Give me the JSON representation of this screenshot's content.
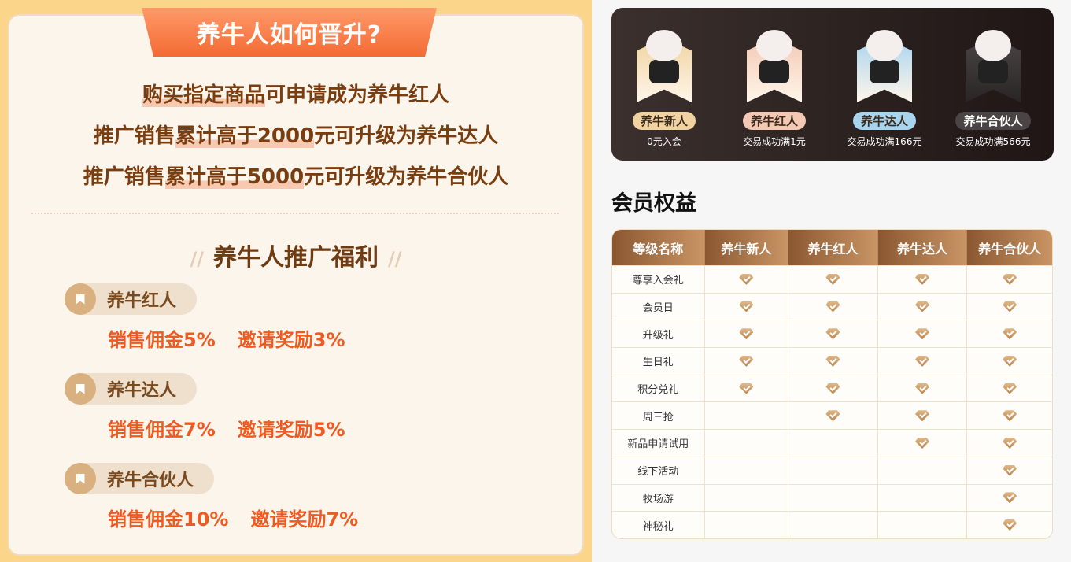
{
  "left": {
    "title": "养牛人如何晋升?",
    "rules": [
      {
        "hl": "购买指定商品",
        "rest": "可申请成为养牛红人",
        "pre": ""
      },
      {
        "pre": "推广销售",
        "hl": "累计高于2000",
        "rest": "元可升级为养牛达人"
      },
      {
        "pre": "推广销售",
        "hl": "累计高于5000",
        "rest": "元可升级为养牛合伙人"
      }
    ],
    "welfare_title": "养牛人推广福利",
    "tiers": [
      {
        "name": "养牛红人",
        "commission": "销售佣金5%",
        "invite": "邀请奖励3%"
      },
      {
        "name": "养牛达人",
        "commission": "销售佣金7%",
        "invite": "邀请奖励5%"
      },
      {
        "name": "养牛合伙人",
        "commission": "销售佣金10%",
        "invite": "邀请奖励7%"
      }
    ]
  },
  "levels": [
    {
      "name": "养牛新人",
      "cond": "0元入会",
      "color": "#f0d3a0"
    },
    {
      "name": "养牛红人",
      "cond": "交易成功满1元",
      "color": "#f3c8b4"
    },
    {
      "name": "养牛达人",
      "cond": "交易成功满166元",
      "color": "#a9d4ee"
    },
    {
      "name": "养牛合伙人",
      "cond": "交易成功满566元",
      "color": "#4a4544"
    }
  ],
  "benefits": {
    "title": "会员权益",
    "headers": [
      "等级名称",
      "养牛新人",
      "养牛红人",
      "养牛达人",
      "养牛合伙人"
    ],
    "rows": [
      {
        "name": "尊享入会礼",
        "checks": [
          1,
          1,
          1,
          1
        ]
      },
      {
        "name": "会员日",
        "checks": [
          1,
          1,
          1,
          1
        ]
      },
      {
        "name": "升级礼",
        "checks": [
          1,
          1,
          1,
          1
        ]
      },
      {
        "name": "生日礼",
        "checks": [
          1,
          1,
          1,
          1
        ]
      },
      {
        "name": "积分兑礼",
        "checks": [
          1,
          1,
          1,
          1
        ]
      },
      {
        "name": "周三抢",
        "checks": [
          0,
          1,
          1,
          1
        ]
      },
      {
        "name": "新品申请试用",
        "checks": [
          0,
          0,
          1,
          1
        ]
      },
      {
        "name": "线下活动",
        "checks": [
          0,
          0,
          0,
          1
        ]
      },
      {
        "name": "牧场游",
        "checks": [
          0,
          0,
          0,
          1
        ]
      },
      {
        "name": "神秘礼",
        "checks": [
          0,
          0,
          0,
          1
        ]
      }
    ]
  }
}
